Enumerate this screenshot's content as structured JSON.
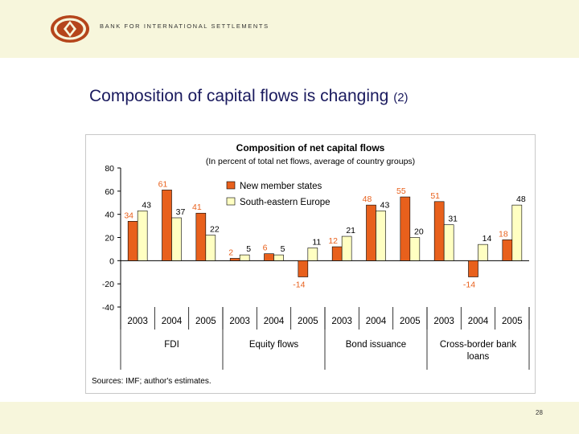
{
  "header": {
    "bank_name": "BANK FOR INTERNATIONAL SETTLEMENTS"
  },
  "slide": {
    "title": "Composition of capital flows is changing",
    "title_suffix": "(2)",
    "page_number": "28"
  },
  "colors": {
    "band": "#f7f6dc",
    "title": "#1a1a5e",
    "series_new_member": "#e8601c",
    "series_se_europe": "#ffffc2",
    "label_new_member": "#e8601c",
    "logo": "#b5451b"
  },
  "chart_data": {
    "type": "bar",
    "title": "Composition of net capital flows",
    "subtitle": "(In percent of total net flows, average of country groups)",
    "ylim": [
      -40,
      80
    ],
    "yticks": [
      "80",
      "60",
      "40",
      "20",
      "0",
      "-20",
      "-40"
    ],
    "ytick_values": [
      80,
      60,
      40,
      20,
      0,
      -20,
      -40
    ],
    "categories": [
      "2003",
      "2004",
      "2005",
      "2003",
      "2004",
      "2005",
      "2003",
      "2004",
      "2005",
      "2003",
      "2004",
      "2005"
    ],
    "groups": [
      {
        "name": "FDI",
        "start": 0,
        "count": 3
      },
      {
        "name": "Equity flows",
        "start": 3,
        "count": 3
      },
      {
        "name": "Bond issuance",
        "start": 6,
        "count": 3
      },
      {
        "name": "Cross-border bank loans",
        "start": 9,
        "count": 3
      }
    ],
    "series": [
      {
        "name": "New member states",
        "values": [
          34,
          61,
          41,
          2,
          6,
          -14,
          12,
          48,
          55,
          51,
          -14,
          18
        ]
      },
      {
        "name": "South-eastern Europe",
        "values": [
          43,
          37,
          22,
          5,
          5,
          11,
          21,
          43,
          20,
          31,
          14,
          48
        ]
      }
    ],
    "legend": "top-center",
    "source": "Sources: IMF; author's estimates."
  }
}
